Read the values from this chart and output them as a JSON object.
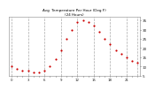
{
  "hours": [
    0,
    1,
    2,
    3,
    4,
    5,
    6,
    7,
    8,
    9,
    10,
    11,
    12,
    13,
    14,
    15,
    16,
    17,
    18,
    19,
    20,
    21,
    22,
    23
  ],
  "temps": [
    10,
    9,
    8,
    8,
    7,
    7,
    8,
    10,
    14,
    19,
    25,
    30,
    34,
    35,
    34,
    32,
    29,
    25,
    22,
    19,
    17,
    15,
    13,
    12
  ],
  "title": "Avg  Temperature Per Hour (Deg F)",
  "subtitle": "(24 Hours)",
  "bg_color": "#ffffff",
  "plot_bg_color": "#ffffff",
  "dot_color": "#cc0000",
  "grid_color": "#aaaaaa",
  "text_color": "#222222",
  "title_color": "#000000",
  "ylim": [
    5,
    37
  ],
  "yticks": [
    5,
    10,
    15,
    20,
    25,
    30,
    35
  ],
  "grid_hours": [
    0,
    3,
    6,
    9,
    12,
    15,
    18,
    21,
    23
  ]
}
